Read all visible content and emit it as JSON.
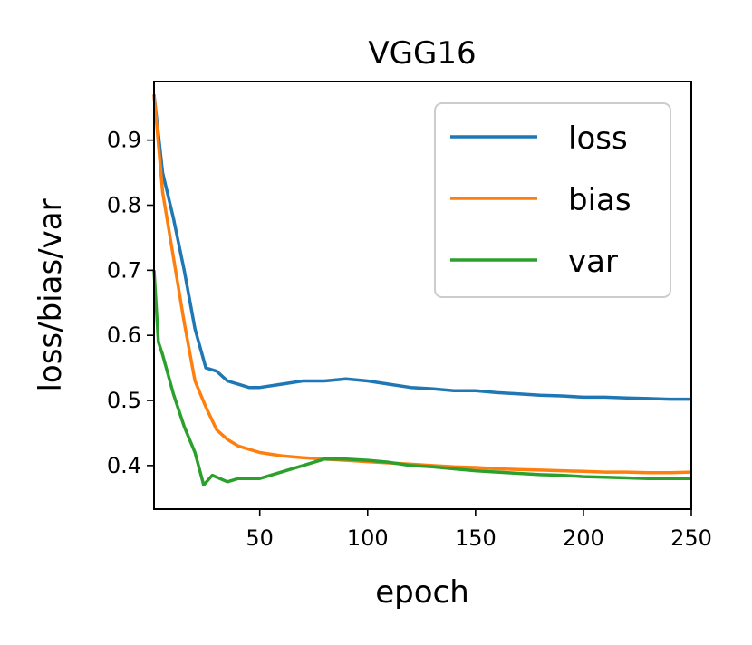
{
  "chart_data": {
    "type": "line",
    "title": "VGG16",
    "xlabel": "epoch",
    "ylabel": "loss/bias/var",
    "xlim": [
      1,
      250
    ],
    "ylim": [
      0.333,
      0.99
    ],
    "xticks": [
      50,
      100,
      150,
      200,
      250
    ],
    "xtick_labels": [
      "50",
      "100",
      "150",
      "200",
      "250"
    ],
    "yticks": [
      0.4,
      0.5,
      0.6,
      0.7,
      0.8,
      0.9
    ],
    "ytick_labels": [
      "0.4",
      "0.5",
      "0.6",
      "0.7",
      "0.8",
      "0.9"
    ],
    "legend_position": "top-right",
    "series": [
      {
        "name": "loss",
        "color": "#1f77b4",
        "x": [
          1,
          5,
          10,
          15,
          20,
          25,
          30,
          35,
          40,
          45,
          50,
          60,
          70,
          80,
          90,
          100,
          110,
          120,
          130,
          140,
          150,
          160,
          170,
          180,
          190,
          200,
          210,
          220,
          230,
          240,
          250
        ],
        "y": [
          0.97,
          0.85,
          0.78,
          0.7,
          0.61,
          0.55,
          0.545,
          0.53,
          0.525,
          0.52,
          0.52,
          0.525,
          0.53,
          0.53,
          0.533,
          0.53,
          0.525,
          0.52,
          0.518,
          0.515,
          0.515,
          0.512,
          0.51,
          0.508,
          0.507,
          0.505,
          0.505,
          0.504,
          0.503,
          0.502,
          0.502
        ]
      },
      {
        "name": "bias",
        "color": "#ff7f0e",
        "x": [
          1,
          5,
          10,
          15,
          20,
          25,
          30,
          35,
          40,
          45,
          50,
          60,
          70,
          80,
          90,
          100,
          110,
          120,
          130,
          140,
          150,
          160,
          170,
          180,
          190,
          200,
          210,
          220,
          230,
          240,
          250
        ],
        "y": [
          0.97,
          0.82,
          0.72,
          0.62,
          0.53,
          0.49,
          0.455,
          0.44,
          0.43,
          0.425,
          0.42,
          0.415,
          0.412,
          0.41,
          0.408,
          0.406,
          0.404,
          0.402,
          0.4,
          0.398,
          0.397,
          0.395,
          0.394,
          0.393,
          0.392,
          0.391,
          0.39,
          0.39,
          0.389,
          0.389,
          0.39
        ]
      },
      {
        "name": "var",
        "color": "#2ca02c",
        "x": [
          1,
          3,
          5,
          10,
          15,
          20,
          24,
          28,
          35,
          40,
          45,
          50,
          60,
          70,
          80,
          90,
          100,
          110,
          120,
          130,
          140,
          150,
          160,
          170,
          180,
          190,
          200,
          210,
          220,
          230,
          240,
          250
        ],
        "y": [
          0.7,
          0.59,
          0.57,
          0.51,
          0.46,
          0.42,
          0.37,
          0.385,
          0.375,
          0.38,
          0.38,
          0.38,
          0.39,
          0.4,
          0.41,
          0.41,
          0.408,
          0.405,
          0.4,
          0.398,
          0.395,
          0.392,
          0.39,
          0.388,
          0.386,
          0.385,
          0.383,
          0.382,
          0.381,
          0.38,
          0.38,
          0.38
        ]
      }
    ]
  }
}
